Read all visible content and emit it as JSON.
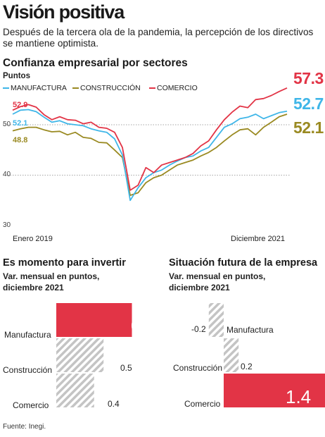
{
  "header": {
    "title": "Visión positiva",
    "subtitle": "Después de la tercera ola de la pandemia, la percepción de los directivos se mantiene optimista."
  },
  "source": "Fuente: Inegi.",
  "colors": {
    "manufactura": "#3fb6e8",
    "construccion": "#9a8a22",
    "comercio": "#e23446",
    "hatch": "#bdbdbd"
  },
  "chart_data": [
    {
      "type": "line",
      "title": "Confianza empresarial por sectores",
      "ylabel": "Puntos",
      "x_start_label": "Enero 2019",
      "x_end_label": "Diciembre 2021",
      "y_ticks": [
        "50",
        "40",
        "30"
      ],
      "ylim": [
        30,
        59
      ],
      "x": [
        "2019-01",
        "2019-02",
        "2019-03",
        "2019-04",
        "2019-05",
        "2019-06",
        "2019-07",
        "2019-08",
        "2019-09",
        "2019-10",
        "2019-11",
        "2019-12",
        "2020-01",
        "2020-02",
        "2020-03",
        "2020-04",
        "2020-05",
        "2020-06",
        "2020-07",
        "2020-08",
        "2020-09",
        "2020-10",
        "2020-11",
        "2020-12",
        "2021-01",
        "2021-02",
        "2021-03",
        "2021-04",
        "2021-05",
        "2021-06",
        "2021-07",
        "2021-08",
        "2021-09",
        "2021-10",
        "2021-11",
        "2021-12"
      ],
      "series": [
        {
          "name": "MANUFACTURA",
          "color_key": "manufactura",
          "start_label": "52.1",
          "end_label": "52.7",
          "values": [
            52.1,
            52.9,
            53.0,
            52.6,
            51.5,
            50.5,
            50.8,
            50.2,
            50.0,
            49.8,
            49.2,
            48.8,
            48.5,
            47.2,
            44.0,
            35.0,
            37.5,
            39.5,
            40.5,
            41.0,
            42.0,
            42.8,
            43.5,
            43.8,
            44.8,
            45.5,
            47.5,
            49.5,
            50.2,
            51.2,
            51.5,
            52.1,
            51.2,
            51.8,
            52.4,
            52.7
          ]
        },
        {
          "name": "CONSTRUCCIÓN",
          "color_key": "construccion",
          "start_label": "48.8",
          "end_label": "52.1",
          "values": [
            48.8,
            49.2,
            49.5,
            49.5,
            49.0,
            48.6,
            48.7,
            48.0,
            48.5,
            47.5,
            47.3,
            46.5,
            46.4,
            45.0,
            43.5,
            36.0,
            36.5,
            38.5,
            39.5,
            40.0,
            41.0,
            42.0,
            42.5,
            43.0,
            43.8,
            44.5,
            45.5,
            46.8,
            48.0,
            49.0,
            49.2,
            48.0,
            49.5,
            50.5,
            51.6,
            52.1
          ]
        },
        {
          "name": "COMERCIO",
          "color_key": "comercio",
          "start_label": "52.9",
          "end_label": "57.3",
          "values": [
            52.9,
            53.6,
            54.0,
            53.5,
            52.0,
            51.0,
            51.6,
            51.0,
            50.9,
            50.2,
            50.5,
            49.5,
            49.3,
            48.5,
            45.5,
            37.0,
            38.0,
            41.5,
            40.5,
            42.0,
            42.5,
            43.0,
            43.5,
            44.3,
            45.8,
            46.8,
            49.0,
            51.0,
            52.5,
            53.7,
            53.4,
            55.0,
            55.2,
            55.8,
            56.6,
            57.3
          ]
        }
      ]
    },
    {
      "type": "bar",
      "title": "Es momento para invertir",
      "subtitle": [
        "Var. mensual en puntos,",
        "diciembre 2021"
      ],
      "categories": [
        "Manufactura",
        "Construcción",
        "Comercio"
      ],
      "values": [
        0.8,
        0.5,
        0.4
      ],
      "value_labels": [
        "0.8",
        "0.5",
        "0.4"
      ],
      "highlight": "Manufactura"
    },
    {
      "type": "bar",
      "title": "Situación futura de la empresa",
      "subtitle": [
        "Var. mensual en puntos,",
        "diciembre 2021"
      ],
      "categories": [
        "Manufactura",
        "Construcción",
        "Comercio"
      ],
      "values": [
        -0.2,
        0.2,
        1.4
      ],
      "value_labels": [
        "-0.2",
        "0.2",
        "1.4"
      ],
      "highlight": "Comercio"
    }
  ]
}
